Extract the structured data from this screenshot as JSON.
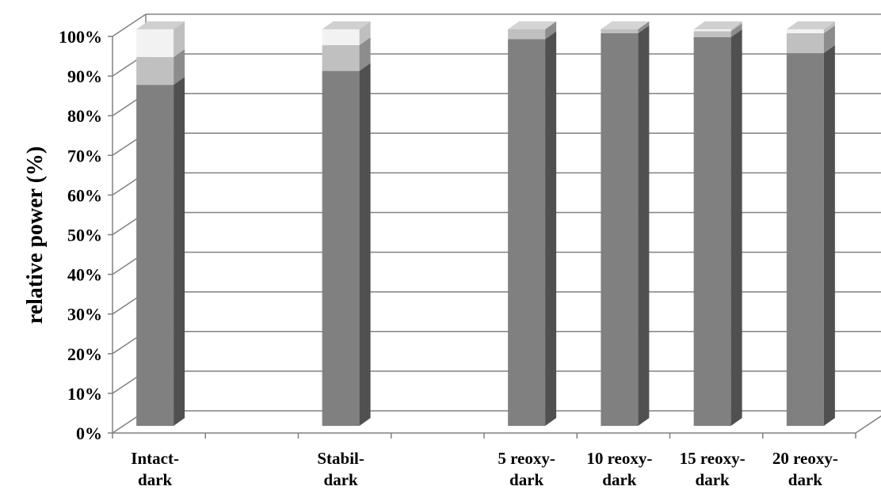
{
  "chart_data": {
    "type": "bar",
    "stacked": true,
    "three_d": true,
    "ylabel": "relative power (%)",
    "ylim": [
      0,
      100
    ],
    "yticks": [
      "0%",
      "10%",
      "20%",
      "30%",
      "40%",
      "50%",
      "60%",
      "70%",
      "80%",
      "90%",
      "100%"
    ],
    "grid": true,
    "categories": [
      {
        "line1": "Intact-",
        "line2": "dark"
      },
      {
        "line1": "",
        "line2": ""
      },
      {
        "line1": "Stabil-",
        "line2": "dark"
      },
      {
        "line1": "",
        "line2": ""
      },
      {
        "line1": "5 reoxy-",
        "line2": "dark"
      },
      {
        "line1": "10 reoxy-",
        "line2": "dark"
      },
      {
        "line1": "15 reoxy-",
        "line2": "dark"
      },
      {
        "line1": "20 reoxy-",
        "line2": "dark"
      }
    ],
    "series": [
      {
        "values": [
          86,
          null,
          89.5,
          null,
          97.5,
          99,
          98,
          94
        ]
      },
      {
        "values": [
          7,
          null,
          6.5,
          null,
          2.5,
          1,
          1.5,
          5
        ]
      },
      {
        "values": [
          7,
          null,
          4,
          null,
          0,
          0,
          0.5,
          1
        ]
      }
    ],
    "colors": {
      "series": [
        "#808080",
        "#c0c0c0",
        "#f2f2f2"
      ],
      "series_side": [
        "#505050",
        "#8c8c8c",
        "#bfbfbf"
      ],
      "series_top": [
        "#9a9a9a",
        "#d4d4d4",
        "#d0d0d0"
      ],
      "grid": "#808080"
    }
  }
}
